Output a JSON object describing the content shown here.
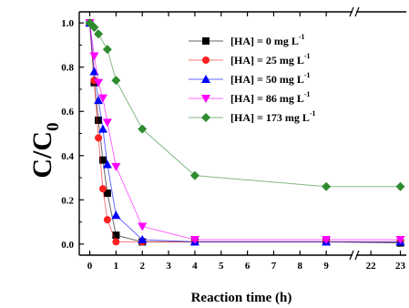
{
  "chart_data": {
    "type": "line",
    "title": "",
    "xlabel": "Reaction time (h)",
    "ylabel_main": "C/C",
    "ylabel_sub": "0",
    "x_ticks_left": [
      "0",
      "1",
      "2",
      "3",
      "4",
      "5",
      "6",
      "7",
      "8",
      "9"
    ],
    "x_ticks_right": [
      "22",
      "23"
    ],
    "y_ticks": [
      "0.0",
      "0.2",
      "0.4",
      "0.6",
      "0.8",
      "1.0"
    ],
    "xlim_left": [
      -0.4,
      10
    ],
    "xlim_right": [
      21.5,
      23.2
    ],
    "ylim": [
      -0.05,
      1.05
    ],
    "axis_break": true,
    "grid": false,
    "legend_position": "upper-right",
    "series": [
      {
        "name": "[HA] = 0 mg L",
        "name_sup": "-1",
        "color": "#000000",
        "marker": "square",
        "x": [
          0,
          0.17,
          0.33,
          0.5,
          0.67,
          1,
          2,
          4,
          9,
          23
        ],
        "y": [
          1.0,
          0.73,
          0.56,
          0.38,
          0.23,
          0.04,
          0.01,
          0.01,
          0.01,
          0.005
        ]
      },
      {
        "name": "[HA] = 25 mg L",
        "name_sup": "-1",
        "color": "#ff2020",
        "marker": "circle",
        "x": [
          0,
          0.17,
          0.33,
          0.5,
          0.67,
          1,
          2,
          4,
          9,
          23
        ],
        "y": [
          1.0,
          0.74,
          0.48,
          0.25,
          0.11,
          0.01,
          0.01,
          0.01,
          0.01,
          0.01
        ]
      },
      {
        "name": "[HA] = 50 mg L",
        "name_sup": "-1",
        "color": "#0000ff",
        "marker": "triangle-up",
        "x": [
          0,
          0.17,
          0.33,
          0.5,
          0.67,
          1,
          2,
          4,
          9,
          23
        ],
        "y": [
          1.0,
          0.78,
          0.65,
          0.52,
          0.36,
          0.13,
          0.02,
          0.01,
          0.01,
          0.01
        ]
      },
      {
        "name": "[HA] = 86 mg L",
        "name_sup": "-1",
        "color": "#ff00ff",
        "marker": "triangle-down",
        "x": [
          0,
          0.17,
          0.33,
          0.5,
          0.67,
          1,
          2,
          4,
          9,
          23
        ],
        "y": [
          1.0,
          0.85,
          0.73,
          0.66,
          0.55,
          0.35,
          0.08,
          0.02,
          0.02,
          0.02
        ]
      },
      {
        "name": "[HA] = 173 mg L",
        "name_sup": "-1",
        "color": "#2e8b2e",
        "marker": "diamond",
        "x": [
          0,
          0.17,
          0.33,
          0.67,
          1,
          2,
          4,
          9,
          23
        ],
        "y": [
          1.0,
          0.98,
          0.95,
          0.88,
          0.74,
          0.52,
          0.31,
          0.26,
          0.26
        ]
      }
    ]
  }
}
